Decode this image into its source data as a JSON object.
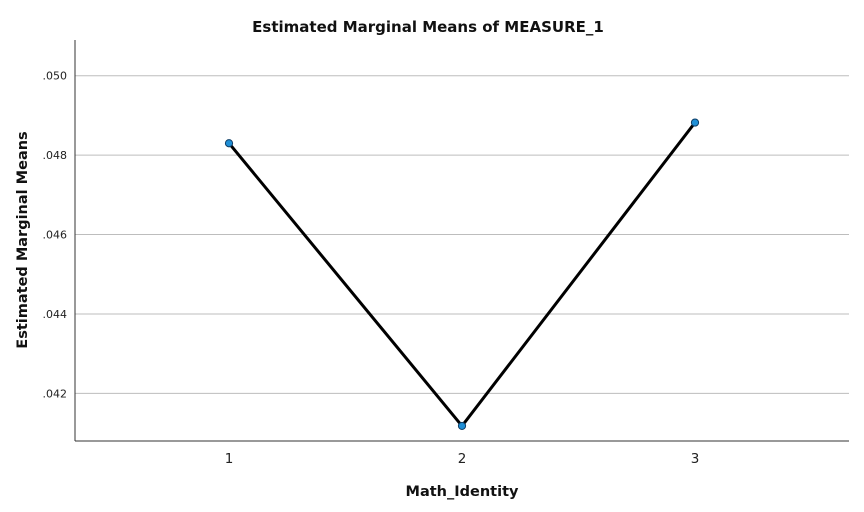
{
  "chart_data": {
    "type": "line",
    "title": "Estimated Marginal Means of MEASURE_1",
    "xlabel": "Math_Identity",
    "ylabel": "Estimated Marginal Means",
    "categories": [
      "1",
      "2",
      "3"
    ],
    "series": [
      {
        "values": [
          0.0483,
          0.04118,
          0.04882
        ]
      }
    ],
    "ylim": [
      0.0408,
      0.0509
    ],
    "yticks": [
      0.042,
      0.044,
      0.046,
      0.048,
      0.05
    ],
    "ytick_labels": [
      ".042",
      ".044",
      ".046",
      ".048",
      ".050"
    ],
    "grid": true,
    "legend": "none",
    "colors": {
      "line": "#000000",
      "marker": "#1f8fd6",
      "grid": "#bdbdbd"
    }
  }
}
